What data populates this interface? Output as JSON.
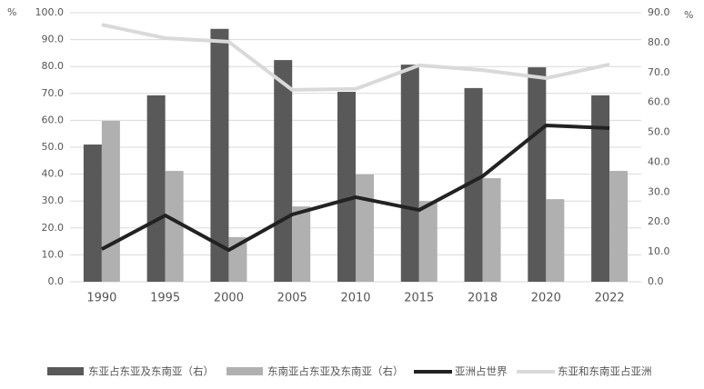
{
  "chart_data": {
    "type": "bar",
    "y_unit": "%",
    "y2_unit": "%",
    "categories": [
      "1990",
      "1995",
      "2000",
      "2005",
      "2010",
      "2015",
      "2018",
      "2020",
      "2022"
    ],
    "series": [
      {
        "name": "东亚占东亚及东南亚（右）",
        "type": "bar",
        "color": "#595959",
        "values": [
          51,
          69.3,
          94,
          82.4,
          70.6,
          80.7,
          72,
          79.7,
          69.3
        ]
      },
      {
        "name": "东南亚占东亚及东南亚（右）",
        "type": "bar",
        "color": "#b0b0b0",
        "values": [
          59.8,
          41.2,
          16.6,
          28,
          39.9,
          30,
          38.5,
          30.7,
          41.2
        ]
      },
      {
        "name": "亚洲占世界",
        "type": "line",
        "axis": "y2",
        "color": "#222222",
        "values": [
          10.9,
          22.2,
          10.6,
          22.5,
          28.3,
          24,
          35.3,
          52.3,
          51.4
        ]
      },
      {
        "name": "东亚和东南亚占亚洲",
        "type": "line",
        "axis": "y2",
        "color": "#d9d9d9",
        "values": [
          86,
          81.5,
          80.3,
          64.2,
          64.5,
          72.4,
          70.8,
          68.1,
          72.7
        ]
      }
    ],
    "ylim": [
      0,
      100
    ],
    "yticks": [
      {
        "value": 0,
        "label": "0.0"
      },
      {
        "value": 10,
        "label": "10.0"
      },
      {
        "value": 20,
        "label": "20.0"
      },
      {
        "value": 30,
        "label": "30.0"
      },
      {
        "value": 40,
        "label": "40.0"
      },
      {
        "value": 50,
        "label": "50.0"
      },
      {
        "value": 60,
        "label": "60.0"
      },
      {
        "value": 70,
        "label": "70.0"
      },
      {
        "value": 80,
        "label": "80.0"
      },
      {
        "value": 90,
        "label": "90.0"
      },
      {
        "value": 100,
        "label": "100.0"
      }
    ],
    "y2lim": [
      0,
      90
    ],
    "y2ticks": [
      {
        "value": 0,
        "label": "0.0"
      },
      {
        "value": 10,
        "label": "10.0"
      },
      {
        "value": 20,
        "label": "20.0"
      },
      {
        "value": 30,
        "label": "30.0"
      },
      {
        "value": 40,
        "label": "40.0"
      },
      {
        "value": 50,
        "label": "50.0"
      },
      {
        "value": 60,
        "label": "60.0"
      },
      {
        "value": 70,
        "label": "70.0"
      },
      {
        "value": 80,
        "label": "80.0"
      },
      {
        "value": 90,
        "label": "90.0"
      }
    ],
    "grid": true,
    "legend": "bottom"
  }
}
